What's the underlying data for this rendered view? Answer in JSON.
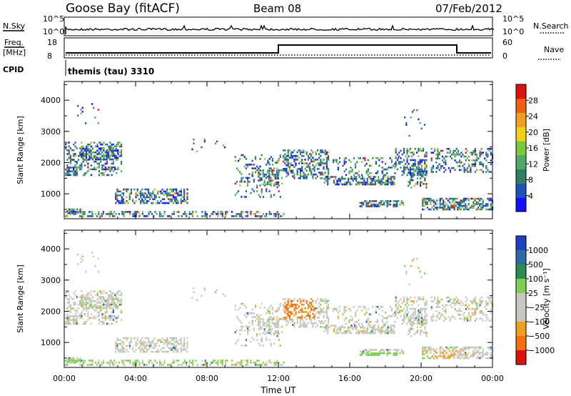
{
  "header": {
    "station": "Goose Bay (fitACF)",
    "beam": "Beam 08",
    "date": "07/Feb/2012"
  },
  "top_strips": {
    "nsky_label": "N.Sky",
    "nsky_ticks": [
      "10^5",
      "10^0"
    ],
    "nsearch_label": "N.Search",
    "nsearch_ticks": [
      "10^5",
      "10^0"
    ],
    "freq_label_1": "Freq.",
    "freq_label_2": "[MHz]",
    "freq_ticks": [
      "18",
      "8"
    ],
    "nave_label": "Nave",
    "nave_ticks": [
      "60",
      "0"
    ],
    "cpid_label": "CPID",
    "cpid_value": "themis (tau) 3310"
  },
  "chart_data": [
    {
      "type": "heatmap",
      "ylabel": "Slant Range [km]",
      "yticks": [
        "1000",
        "2000",
        "3000",
        "4000"
      ],
      "ylim": [
        200,
        4600
      ],
      "xlim": [
        0,
        24
      ],
      "colorbar_label": "Power [dB]",
      "colorbar_ticks": [
        "4",
        "8",
        "12",
        "16",
        "20",
        "24",
        "28"
      ],
      "colorbar_colors": [
        "#1010ff",
        "#2050b8",
        "#2e7e62",
        "#4ea866",
        "#7cc63a",
        "#f0d010",
        "#f0a020",
        "#f06010",
        "#e01010"
      ]
    },
    {
      "type": "heatmap",
      "ylabel": "Slant Range [km]",
      "yticks": [
        "1000",
        "2000",
        "3000",
        "4000"
      ],
      "ylim": [
        200,
        4600
      ],
      "xlim": [
        0,
        24
      ],
      "xticks": [
        "00:00",
        "04:00",
        "08:00",
        "12:00",
        "16:00",
        "20:00",
        "00:00"
      ],
      "xlabel": "Time UT",
      "colorbar_label": "Velocity [m s⁻¹]",
      "colorbar_ticks": [
        "1000",
        "500",
        "100",
        "25",
        "−25",
        "−100",
        "−500",
        "−1000"
      ],
      "colorbar_colors": [
        "#2040c0",
        "#2a6aa8",
        "#2e8a50",
        "#7ed050",
        "#c8c8c0",
        "#c8c8c0",
        "#f0a020",
        "#f07010",
        "#e01010"
      ]
    }
  ]
}
